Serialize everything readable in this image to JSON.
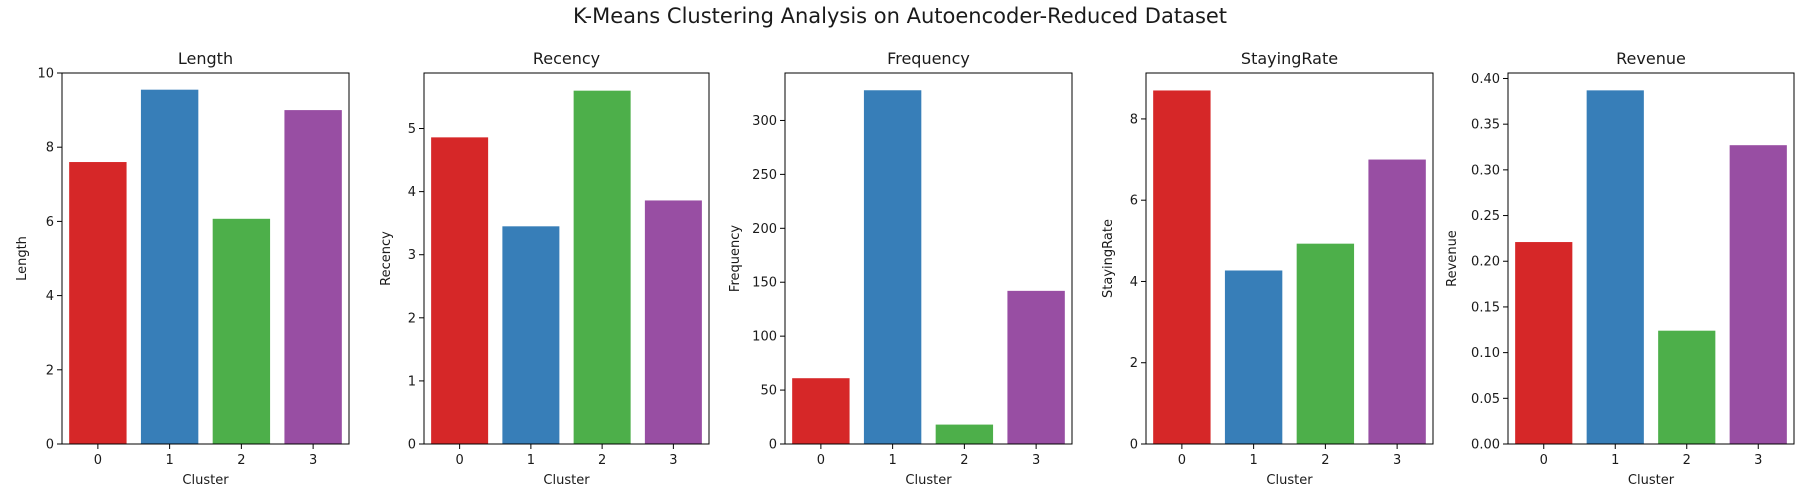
{
  "figure": {
    "title": "K-Means Clustering Analysis on Autoencoder-Reduced Dataset"
  },
  "colors": [
    "#d62728",
    "#377eb8",
    "#4daf4a",
    "#984ea3"
  ],
  "chart_data": [
    {
      "type": "bar",
      "title": "Length",
      "xlabel": "Cluster",
      "ylabel": "Length",
      "categories": [
        "0",
        "1",
        "2",
        "3"
      ],
      "values": [
        7.6,
        9.55,
        6.07,
        9.0
      ],
      "ylim": [
        0,
        10
      ],
      "yticks": [
        0,
        2,
        4,
        6,
        8,
        10
      ],
      "ytick_labels": [
        "0",
        "2",
        "4",
        "6",
        "8",
        "10"
      ],
      "grid": false,
      "legend": "none"
    },
    {
      "type": "bar",
      "title": "Recency",
      "xlabel": "Cluster",
      "ylabel": "Recency",
      "categories": [
        "0",
        "1",
        "2",
        "3"
      ],
      "values": [
        4.86,
        3.45,
        5.6,
        3.86
      ],
      "ylim": [
        0,
        5.88
      ],
      "yticks": [
        0,
        1,
        2,
        3,
        4,
        5
      ],
      "ytick_labels": [
        "0",
        "1",
        "2",
        "3",
        "4",
        "5"
      ],
      "grid": false,
      "legend": "none"
    },
    {
      "type": "bar",
      "title": "Frequency",
      "xlabel": "Cluster",
      "ylabel": "Frequency",
      "categories": [
        "0",
        "1",
        "2",
        "3"
      ],
      "values": [
        61,
        328,
        18,
        142
      ],
      "ylim": [
        0,
        344
      ],
      "yticks": [
        0,
        50,
        100,
        150,
        200,
        250,
        300
      ],
      "ytick_labels": [
        "0",
        "50",
        "100",
        "150",
        "200",
        "250",
        "300"
      ],
      "grid": false,
      "legend": "none"
    },
    {
      "type": "bar",
      "title": "StayingRate",
      "xlabel": "Cluster",
      "ylabel": "StayingRate",
      "categories": [
        "0",
        "1",
        "2",
        "3"
      ],
      "values": [
        8.7,
        4.27,
        4.93,
        7.0
      ],
      "ylim": [
        0,
        9.13
      ],
      "yticks": [
        0,
        2,
        4,
        6,
        8
      ],
      "ytick_labels": [
        "0",
        "2",
        "4",
        "6",
        "8"
      ],
      "grid": false,
      "legend": "none"
    },
    {
      "type": "bar",
      "title": "Revenue",
      "xlabel": "Cluster",
      "ylabel": "Revenue",
      "categories": [
        "0",
        "1",
        "2",
        "3"
      ],
      "values": [
        0.221,
        0.387,
        0.124,
        0.327
      ],
      "ylim": [
        0,
        0.406
      ],
      "yticks": [
        0,
        0.05,
        0.1,
        0.15,
        0.2,
        0.25,
        0.3,
        0.35,
        0.4
      ],
      "ytick_labels": [
        "0.00",
        "0.05",
        "0.10",
        "0.15",
        "0.20",
        "0.25",
        "0.30",
        "0.35",
        "0.40"
      ],
      "grid": false,
      "legend": "none"
    }
  ]
}
